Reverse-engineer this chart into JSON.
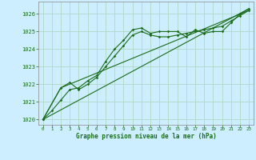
{
  "title": "Graphe pression niveau de la mer (hPa)",
  "background_color": "#cceeff",
  "grid_color": "#b0d8c8",
  "line_color": "#1a6b1a",
  "xlim": [
    -0.5,
    23.5
  ],
  "ylim": [
    1019.7,
    1026.7
  ],
  "yticks": [
    1020,
    1021,
    1022,
    1023,
    1024,
    1025,
    1026
  ],
  "xticks": [
    0,
    1,
    2,
    3,
    4,
    5,
    6,
    7,
    8,
    9,
    10,
    11,
    12,
    13,
    14,
    15,
    16,
    17,
    18,
    19,
    20,
    21,
    22,
    23
  ],
  "series1_x": [
    0,
    1,
    2,
    3,
    4,
    5,
    6,
    7,
    8,
    9,
    10,
    11,
    12,
    13,
    14,
    15,
    16,
    17,
    18,
    19,
    20,
    21,
    22,
    23
  ],
  "series1_y": [
    1020.0,
    1020.5,
    1021.1,
    1021.7,
    1021.8,
    1022.2,
    1022.5,
    1023.3,
    1024.0,
    1024.5,
    1025.1,
    1025.2,
    1024.9,
    1025.0,
    1025.0,
    1025.0,
    1024.7,
    1025.1,
    1024.9,
    1025.0,
    1025.0,
    1025.5,
    1026.0,
    1026.3
  ],
  "series2_x": [
    0,
    2,
    3,
    4,
    5,
    6,
    7,
    8,
    9,
    10,
    11,
    12,
    13,
    14,
    15,
    16,
    17,
    18,
    19,
    20,
    21,
    22,
    23
  ],
  "series2_y": [
    1020.0,
    1021.8,
    1022.1,
    1021.7,
    1022.0,
    1022.4,
    1023.0,
    1023.6,
    1024.2,
    1024.8,
    1025.0,
    1024.8,
    1024.7,
    1024.7,
    1024.8,
    1024.9,
    1025.0,
    1025.1,
    1025.2,
    1025.3,
    1025.6,
    1025.9,
    1026.2
  ],
  "series3_x": [
    0,
    23
  ],
  "series3_y": [
    1020.0,
    1026.3
  ],
  "series4_x": [
    0,
    2,
    23
  ],
  "series4_y": [
    1020.0,
    1021.8,
    1026.2
  ]
}
